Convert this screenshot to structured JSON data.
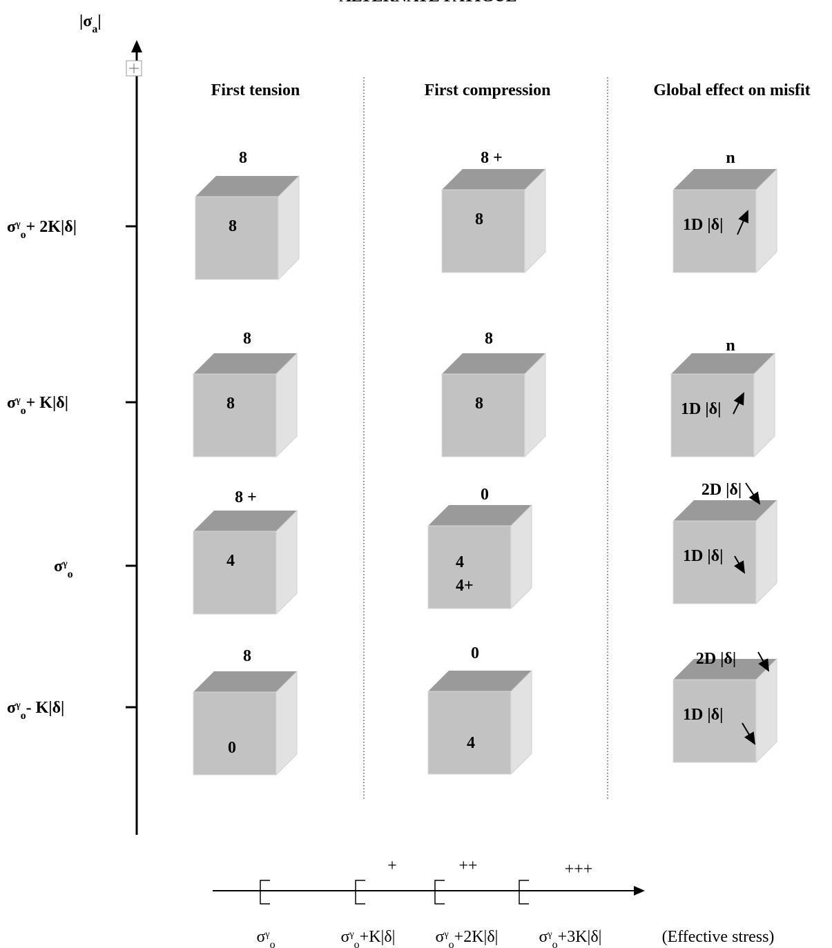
{
  "title": "ALTERNATE FATIGUE",
  "y_axis": {
    "label": {
      "sym": "|σ",
      "sub": "a",
      "rest": "|"
    }
  },
  "columns": [
    "First tension",
    "First compression",
    "Global effect on misfit"
  ],
  "rows": [
    {
      "level": {
        "sym": "σ",
        "sup": "γ",
        "sub": "o",
        "rest": "+ 2K|δ|"
      },
      "cells": [
        {
          "top": "8",
          "face": [
            "8"
          ]
        },
        {
          "top": "8 +",
          "face": [
            "8"
          ]
        },
        {
          "top": "n",
          "face": [
            "1D |δ|"
          ]
        }
      ]
    },
    {
      "level": {
        "sym": "σ",
        "sup": "γ",
        "sub": "o",
        "rest": "+ K|δ|"
      },
      "cells": [
        {
          "top": "8",
          "face": [
            "8"
          ]
        },
        {
          "top": "8",
          "face": [
            "8"
          ]
        },
        {
          "top": "n",
          "face": [
            "1D |δ|"
          ]
        }
      ]
    },
    {
      "level": {
        "sym": "σ",
        "sup": "γ",
        "sub": "o",
        "rest": ""
      },
      "cells": [
        {
          "top": "8 +",
          "face": [
            "4"
          ]
        },
        {
          "top": "0",
          "face": [
            "4",
            "4+"
          ]
        },
        {
          "top": "2D |δ|",
          "face": [
            "1D |δ|"
          ]
        }
      ]
    },
    {
      "level": {
        "sym": "σ",
        "sup": "γ",
        "sub": "o",
        "rest": "-  K|δ|"
      },
      "cells": [
        {
          "top": "8",
          "face": [
            "0"
          ]
        },
        {
          "top": "0",
          "face": [
            "4"
          ]
        },
        {
          "top": "2D |δ|",
          "face": [
            "1D |δ|"
          ]
        }
      ]
    }
  ],
  "x_axis": {
    "ticks": [
      {
        "sym": "σ",
        "sup": "γ",
        "sub": "o",
        "rest": ""
      },
      {
        "sym": "σ",
        "sup": "γ",
        "sub": "o",
        "rest": "+K|δ|"
      },
      {
        "sym": "σ",
        "sup": "γ",
        "sub": "o",
        "rest": "+2K|δ|"
      },
      {
        "sym": "σ",
        "sup": "γ",
        "sub": "o",
        "rest": "+3K|δ|"
      }
    ],
    "marks": [
      "+",
      "++",
      "+++"
    ],
    "label": "(Effective stress)"
  }
}
